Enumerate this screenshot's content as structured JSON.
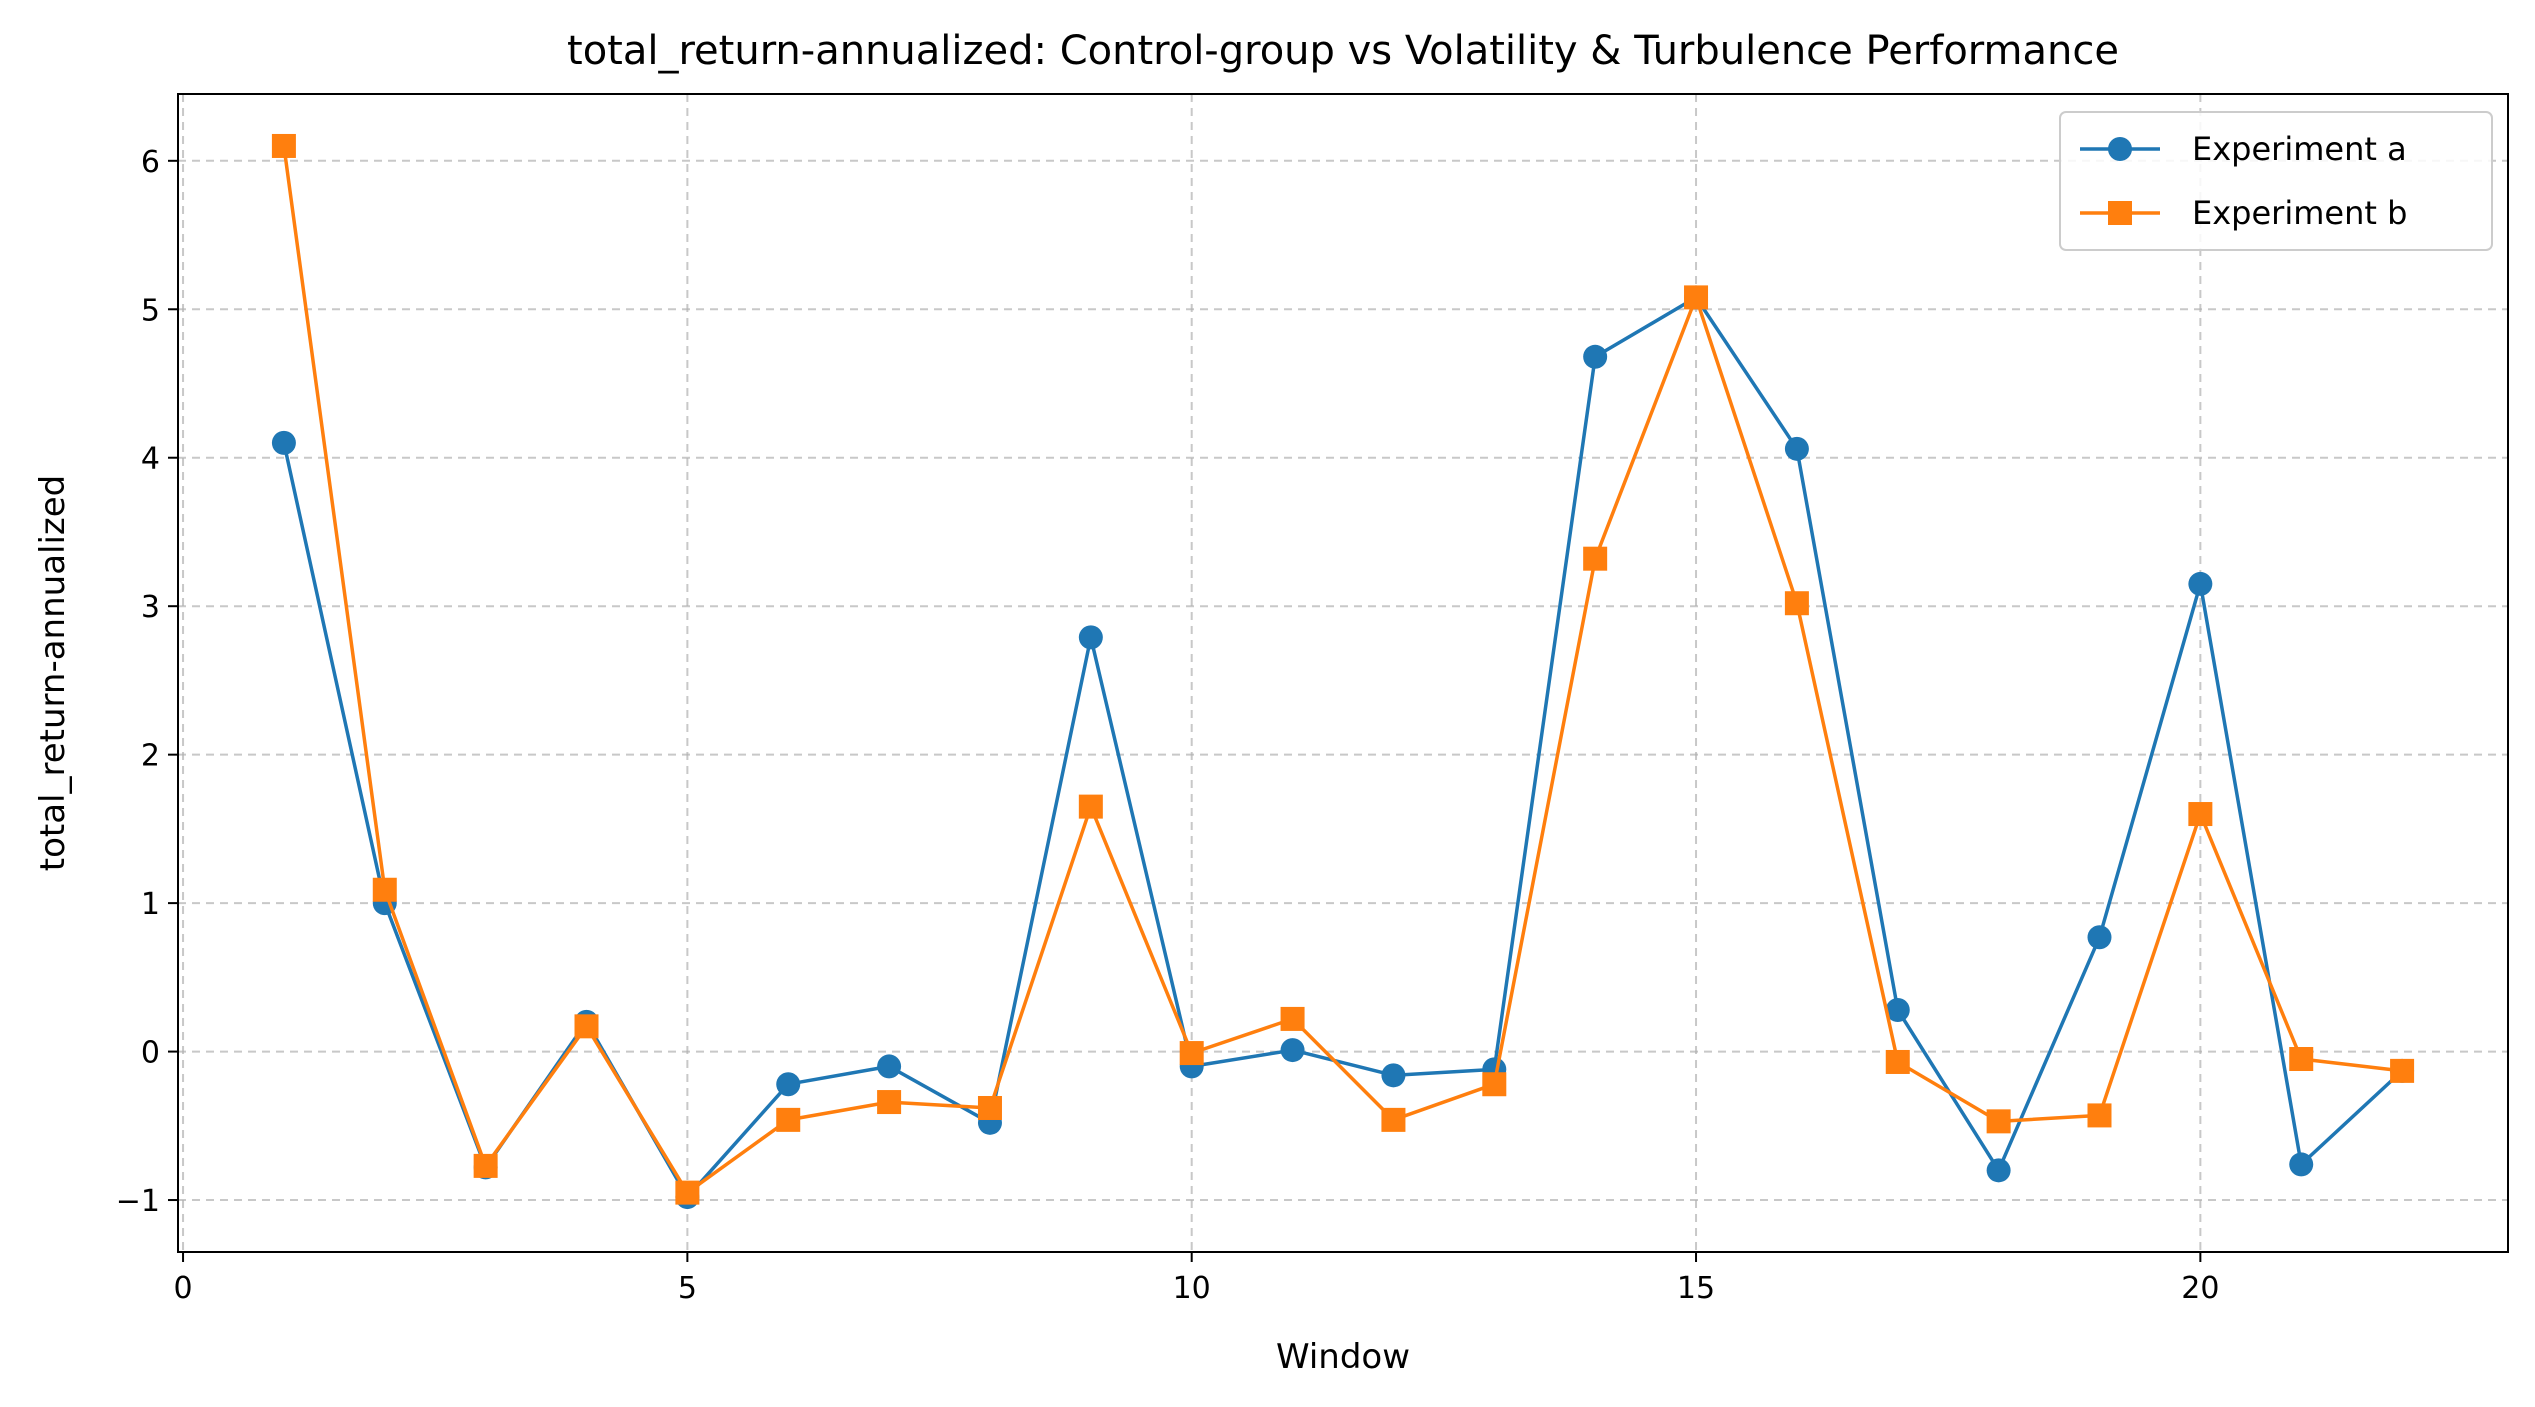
{
  "chart_data": {
    "type": "line",
    "title": "total_return-annualized: Control-group vs Volatility & Turbulence Performance",
    "xlabel": "Window",
    "ylabel": "total_return-annualized",
    "xlim": [
      -0.05,
      23.05
    ],
    "ylim": [
      -1.35,
      6.45
    ],
    "xticks": [
      0,
      5,
      10,
      15,
      20
    ],
    "yticks": [
      -1,
      0,
      1,
      2,
      3,
      4,
      5,
      6
    ],
    "grid": true,
    "legend_position": "top-right",
    "x": [
      1,
      2,
      3,
      4,
      5,
      6,
      7,
      8,
      9,
      10,
      11,
      12,
      13,
      14,
      15,
      16,
      17,
      18,
      19,
      20,
      21,
      22
    ],
    "series": [
      {
        "name": "Experiment a",
        "color": "#1f77b4",
        "marker": "circle",
        "values": [
          4.1,
          1.0,
          -0.78,
          0.2,
          -0.98,
          -0.22,
          -0.1,
          -0.48,
          2.79,
          -0.1,
          0.01,
          -0.16,
          -0.12,
          4.68,
          5.08,
          4.06,
          0.28,
          -0.8,
          0.77,
          3.15,
          -0.76,
          -0.13
        ]
      },
      {
        "name": "Experiment b",
        "color": "#ff7f0e",
        "marker": "square",
        "values": [
          6.1,
          1.09,
          -0.77,
          0.17,
          -0.95,
          -0.46,
          -0.34,
          -0.38,
          1.65,
          -0.01,
          0.22,
          -0.46,
          -0.22,
          3.32,
          5.08,
          3.02,
          -0.07,
          -0.47,
          -0.43,
          1.6,
          -0.05,
          -0.13
        ]
      }
    ]
  }
}
